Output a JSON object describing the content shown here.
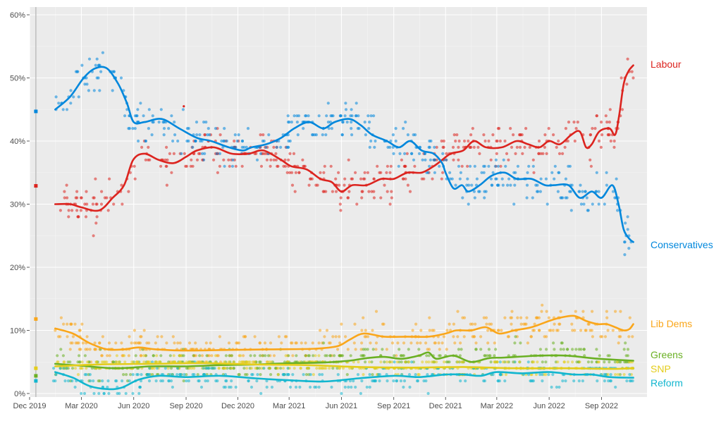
{
  "chart_data": {
    "type": "scatter",
    "title": "",
    "xlabel": "",
    "ylabel": "",
    "x_range": [
      "2019-12-01",
      "2022-11-20"
    ],
    "ylim": [
      0,
      60
    ],
    "grid": true,
    "y_ticks": [
      {
        "value": 0,
        "label": "0%"
      },
      {
        "value": 10,
        "label": "10%"
      },
      {
        "value": 20,
        "label": "20%"
      },
      {
        "value": 30,
        "label": "30%"
      },
      {
        "value": 40,
        "label": "40%"
      },
      {
        "value": 50,
        "label": "50%"
      },
      {
        "value": 60,
        "label": "60%"
      }
    ],
    "x_ticks": [
      {
        "date": "2019-12-01",
        "label": "Dec 2019"
      },
      {
        "date": "2020-03-01",
        "label": "Mar 2020"
      },
      {
        "date": "2020-06-01",
        "label": "Jun 2020"
      },
      {
        "date": "2020-09-01",
        "label": "Sep 2020"
      },
      {
        "date": "2020-12-01",
        "label": "Dec 2020"
      },
      {
        "date": "2021-03-01",
        "label": "Mar 2021"
      },
      {
        "date": "2021-06-01",
        "label": "Jun 2021"
      },
      {
        "date": "2021-09-01",
        "label": "Sep 2021"
      },
      {
        "date": "2021-12-01",
        "label": "Dec 2021"
      },
      {
        "date": "2022-03-01",
        "label": "Mar 2022"
      },
      {
        "date": "2022-06-01",
        "label": "Jun 2022"
      },
      {
        "date": "2022-09-01",
        "label": "Sep 2022"
      }
    ],
    "election_result_date": "2019-12-12",
    "series": [
      {
        "name": "Labour",
        "label": "Labour",
        "color": "#dc241f",
        "election_result": 32.9,
        "trend": [
          [
            "2020-01-15",
            30
          ],
          [
            "2020-02-10",
            30
          ],
          [
            "2020-03-01",
            29.5
          ],
          [
            "2020-04-01",
            29
          ],
          [
            "2020-04-25",
            31
          ],
          [
            "2020-05-15",
            33
          ],
          [
            "2020-05-31",
            37
          ],
          [
            "2020-06-20",
            38
          ],
          [
            "2020-07-15",
            37
          ],
          [
            "2020-08-10",
            36.5
          ],
          [
            "2020-09-01",
            37.5
          ],
          [
            "2020-09-20",
            38.5
          ],
          [
            "2020-10-20",
            39
          ],
          [
            "2020-11-20",
            38
          ],
          [
            "2020-12-20",
            38
          ],
          [
            "2021-01-15",
            38.5
          ],
          [
            "2021-02-15",
            37
          ],
          [
            "2021-03-05",
            36
          ],
          [
            "2021-04-01",
            35.5
          ],
          [
            "2021-04-25",
            34
          ],
          [
            "2021-05-15",
            33.5
          ],
          [
            "2021-06-01",
            32
          ],
          [
            "2021-06-20",
            33
          ],
          [
            "2021-07-15",
            33
          ],
          [
            "2021-08-10",
            34
          ],
          [
            "2021-09-01",
            34
          ],
          [
            "2021-09-25",
            35
          ],
          [
            "2021-10-20",
            35
          ],
          [
            "2021-11-10",
            36
          ],
          [
            "2021-11-25",
            37
          ],
          [
            "2021-12-10",
            38
          ],
          [
            "2022-01-01",
            38.5
          ],
          [
            "2022-01-20",
            40
          ],
          [
            "2022-02-10",
            39
          ],
          [
            "2022-03-10",
            39
          ],
          [
            "2022-04-05",
            40
          ],
          [
            "2022-04-25",
            39.5
          ],
          [
            "2022-05-15",
            39
          ],
          [
            "2022-06-01",
            40
          ],
          [
            "2022-06-20",
            39.5
          ],
          [
            "2022-07-10",
            41
          ],
          [
            "2022-07-25",
            41.5
          ],
          [
            "2022-08-05",
            39
          ],
          [
            "2022-08-15",
            39.5
          ],
          [
            "2022-08-28",
            41.5
          ],
          [
            "2022-09-15",
            42
          ],
          [
            "2022-09-25",
            41
          ],
          [
            "2022-10-02",
            44
          ],
          [
            "2022-10-10",
            49
          ],
          [
            "2022-10-18",
            51
          ],
          [
            "2022-10-27",
            52
          ]
        ],
        "polls": {
          "start": "2020-01-12",
          "end": "2022-10-27",
          "count": 420,
          "seed": 11,
          "spread": 2.2
        }
      },
      {
        "name": "Conservatives",
        "label": "Conservatives",
        "color": "#0087dc",
        "election_result": 44.7,
        "trend": [
          [
            "2020-01-15",
            45
          ],
          [
            "2020-02-10",
            47
          ],
          [
            "2020-03-05",
            50
          ],
          [
            "2020-03-25",
            51.5
          ],
          [
            "2020-04-15",
            51.5
          ],
          [
            "2020-05-05",
            49
          ],
          [
            "2020-05-20",
            46
          ],
          [
            "2020-06-01",
            43
          ],
          [
            "2020-06-20",
            43
          ],
          [
            "2020-07-20",
            43.5
          ],
          [
            "2020-08-20",
            42
          ],
          [
            "2020-09-20",
            40.5
          ],
          [
            "2020-10-15",
            40
          ],
          [
            "2020-11-15",
            39
          ],
          [
            "2020-12-10",
            38.5
          ],
          [
            "2020-12-25",
            39
          ],
          [
            "2021-01-20",
            39.5
          ],
          [
            "2021-02-15",
            40.5
          ],
          [
            "2021-03-10",
            42
          ],
          [
            "2021-04-05",
            43
          ],
          [
            "2021-04-30",
            42
          ],
          [
            "2021-05-20",
            43
          ],
          [
            "2021-06-15",
            43.5
          ],
          [
            "2021-07-05",
            42.5
          ],
          [
            "2021-07-25",
            41
          ],
          [
            "2021-08-20",
            40
          ],
          [
            "2021-09-10",
            39
          ],
          [
            "2021-09-30",
            40
          ],
          [
            "2021-10-20",
            38.5
          ],
          [
            "2021-11-10",
            38
          ],
          [
            "2021-11-25",
            36.5
          ],
          [
            "2021-12-01",
            35
          ],
          [
            "2021-12-15",
            32.5
          ],
          [
            "2021-12-30",
            33
          ],
          [
            "2022-01-10",
            32
          ],
          [
            "2022-01-30",
            33
          ],
          [
            "2022-02-20",
            34.5
          ],
          [
            "2022-03-15",
            35
          ],
          [
            "2022-04-05",
            34
          ],
          [
            "2022-05-01",
            34
          ],
          [
            "2022-05-25",
            33
          ],
          [
            "2022-06-10",
            33
          ],
          [
            "2022-07-05",
            33
          ],
          [
            "2022-07-25",
            31
          ],
          [
            "2022-08-15",
            32
          ],
          [
            "2022-09-01",
            31
          ],
          [
            "2022-09-20",
            33
          ],
          [
            "2022-10-01",
            30
          ],
          [
            "2022-10-10",
            26
          ],
          [
            "2022-10-20",
            24.5
          ],
          [
            "2022-10-27",
            24
          ]
        ],
        "polls": {
          "start": "2020-01-12",
          "end": "2022-10-27",
          "count": 420,
          "seed": 23,
          "spread": 2.2
        }
      },
      {
        "name": "Lib Dems",
        "label": "Lib Dems",
        "color": "#faa61a",
        "election_result": 11.8,
        "trend": [
          [
            "2020-01-15",
            10.3
          ],
          [
            "2020-02-15",
            9.5
          ],
          [
            "2020-03-15",
            8
          ],
          [
            "2020-04-15",
            7
          ],
          [
            "2020-05-15",
            7
          ],
          [
            "2020-06-10",
            7.3
          ],
          [
            "2020-07-10",
            7
          ],
          [
            "2020-09-01",
            6.8
          ],
          [
            "2020-11-15",
            6.9
          ],
          [
            "2021-02-01",
            7
          ],
          [
            "2021-04-15",
            7.1
          ],
          [
            "2021-05-25",
            7.5
          ],
          [
            "2021-06-15",
            8.5
          ],
          [
            "2021-07-10",
            9.5
          ],
          [
            "2021-08-15",
            9
          ],
          [
            "2021-09-25",
            9
          ],
          [
            "2021-11-01",
            9
          ],
          [
            "2021-12-01",
            9.5
          ],
          [
            "2021-12-20",
            10
          ],
          [
            "2022-01-15",
            10
          ],
          [
            "2022-02-10",
            10.5
          ],
          [
            "2022-03-05",
            9.5
          ],
          [
            "2022-04-01",
            10
          ],
          [
            "2022-05-01",
            10.5
          ],
          [
            "2022-06-01",
            11.5
          ],
          [
            "2022-06-20",
            12
          ],
          [
            "2022-07-15",
            12.3
          ],
          [
            "2022-08-05",
            11.5
          ],
          [
            "2022-08-25",
            11
          ],
          [
            "2022-09-10",
            11
          ],
          [
            "2022-09-25",
            10.5
          ],
          [
            "2022-10-10",
            10
          ],
          [
            "2022-10-20",
            10.2
          ],
          [
            "2022-10-27",
            11
          ]
        ],
        "polls": {
          "start": "2020-01-12",
          "end": "2022-10-27",
          "count": 380,
          "seed": 37,
          "spread": 1.8
        }
      },
      {
        "name": "Greens",
        "label": "Greens",
        "color": "#6ab023",
        "election_result": 2.8,
        "trend": [
          [
            "2020-01-15",
            4.7
          ],
          [
            "2020-03-01",
            4.4
          ],
          [
            "2020-05-01",
            4
          ],
          [
            "2020-07-01",
            4.3
          ],
          [
            "2020-09-01",
            4.3
          ],
          [
            "2020-11-01",
            4.5
          ],
          [
            "2021-01-01",
            4.6
          ],
          [
            "2021-03-01",
            4.8
          ],
          [
            "2021-05-01",
            4.9
          ],
          [
            "2021-06-15",
            5.2
          ],
          [
            "2021-07-15",
            5.6
          ],
          [
            "2021-08-15",
            5.8
          ],
          [
            "2021-09-15",
            5.5
          ],
          [
            "2021-10-15",
            6
          ],
          [
            "2021-11-01",
            6.5
          ],
          [
            "2021-11-15",
            5.5
          ],
          [
            "2021-12-15",
            6
          ],
          [
            "2022-01-15",
            5
          ],
          [
            "2022-02-15",
            5.6
          ],
          [
            "2022-03-15",
            5.7
          ],
          [
            "2022-05-15",
            6
          ],
          [
            "2022-07-01",
            6
          ],
          [
            "2022-08-15",
            5.6
          ],
          [
            "2022-09-15",
            5.4
          ],
          [
            "2022-10-27",
            5.2
          ]
        ],
        "polls": {
          "start": "2020-01-12",
          "end": "2022-10-27",
          "count": 360,
          "seed": 41,
          "spread": 1.5
        }
      },
      {
        "name": "SNP",
        "label": "SNP",
        "color": "#e4cd1b",
        "election_result": 4,
        "trend": [
          [
            "2020-01-15",
            4.3
          ],
          [
            "2020-04-01",
            4.6
          ],
          [
            "2020-07-01",
            4.7
          ],
          [
            "2020-10-01",
            4.8
          ],
          [
            "2021-01-01",
            4.6
          ],
          [
            "2021-04-01",
            4.5
          ],
          [
            "2021-07-01",
            4.2
          ],
          [
            "2021-10-01",
            4.1
          ],
          [
            "2022-01-01",
            4.2
          ],
          [
            "2022-04-01",
            4
          ],
          [
            "2022-07-01",
            4
          ],
          [
            "2022-09-15",
            3.9
          ],
          [
            "2022-10-27",
            4
          ]
        ],
        "polls": {
          "start": "2020-01-12",
          "end": "2022-10-27",
          "count": 340,
          "seed": 53,
          "spread": 0.9
        }
      },
      {
        "name": "Reform",
        "label": "Reform",
        "color": "#12b6cf",
        "election_result": 2,
        "trend": [
          [
            "2020-01-15",
            3.4
          ],
          [
            "2020-02-15",
            2.5
          ],
          [
            "2020-03-15",
            1.2
          ],
          [
            "2020-04-15",
            0.7
          ],
          [
            "2020-05-10",
            0.9
          ],
          [
            "2020-06-10",
            2.2
          ],
          [
            "2020-07-15",
            2.8
          ],
          [
            "2020-09-01",
            2.6
          ],
          [
            "2020-11-01",
            2.8
          ],
          [
            "2021-01-01",
            2.4
          ],
          [
            "2021-03-01",
            2.1
          ],
          [
            "2021-05-01",
            1.9
          ],
          [
            "2021-07-01",
            2.4
          ],
          [
            "2021-09-01",
            2.8
          ],
          [
            "2021-10-15",
            2.6
          ],
          [
            "2021-12-01",
            3
          ],
          [
            "2022-01-01",
            3
          ],
          [
            "2022-02-01",
            2.8
          ],
          [
            "2022-03-01",
            3.4
          ],
          [
            "2022-04-15",
            3.2
          ],
          [
            "2022-06-01",
            3.4
          ],
          [
            "2022-07-15",
            3
          ],
          [
            "2022-08-15",
            3
          ],
          [
            "2022-09-15",
            2.6
          ],
          [
            "2022-10-27",
            2.5
          ]
        ],
        "polls": {
          "start": "2020-01-12",
          "end": "2022-10-27",
          "count": 300,
          "seed": 67,
          "spread": 1.4
        }
      }
    ],
    "stray_polls": [
      {
        "party": "Labour",
        "date": "2020-08-28",
        "value": 45.5
      }
    ]
  }
}
